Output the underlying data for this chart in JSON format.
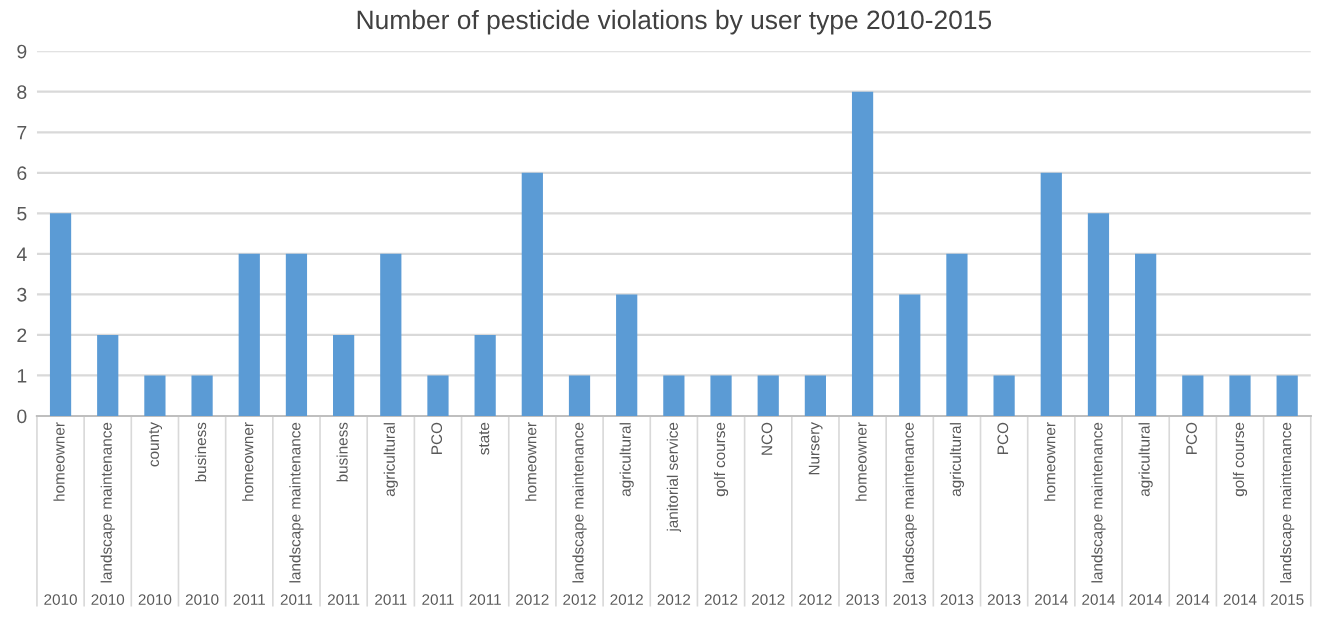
{
  "chart_data": {
    "type": "bar",
    "title": "Number of pesticide violations by user type 2010-2015",
    "categories": [
      "homeowner\n2010",
      "landscape maintenance\n2010",
      "county\n2010",
      "business\n2010",
      "homeowner\n2011",
      "landscape maintenance\n2011",
      "business\n2011",
      "agricultural\n2011",
      "PCO\n2011",
      "state\n2011",
      "homeowner\n2012",
      "landscape maintenance\n2012",
      "agricultural\n2012",
      "janitorial service\n2012",
      "golf course\n2012",
      "NCO\n2012",
      "Nursery\n2012",
      "homeowner\n2013",
      "landscape maintenance\n2013",
      "agricultural\n2013",
      "PCO\n2013",
      "homeowner\n2014",
      "landscape maintenance\n2014",
      "agricultural\n2014",
      "PCO\n2014",
      "golf course\n2014",
      "landscape maintenance\n2015"
    ],
    "values": [
      5,
      2,
      1,
      1,
      4,
      4,
      2,
      4,
      1,
      2,
      6,
      1,
      3,
      1,
      1,
      1,
      1,
      8,
      3,
      4,
      1,
      6,
      5,
      4,
      1,
      1,
      1
    ],
    "color": "#5b9bd5",
    "ylim": [
      0,
      9
    ],
    "yticks": [
      0,
      1,
      2,
      3,
      4,
      5,
      6,
      7,
      8,
      9
    ],
    "grid": "y"
  }
}
